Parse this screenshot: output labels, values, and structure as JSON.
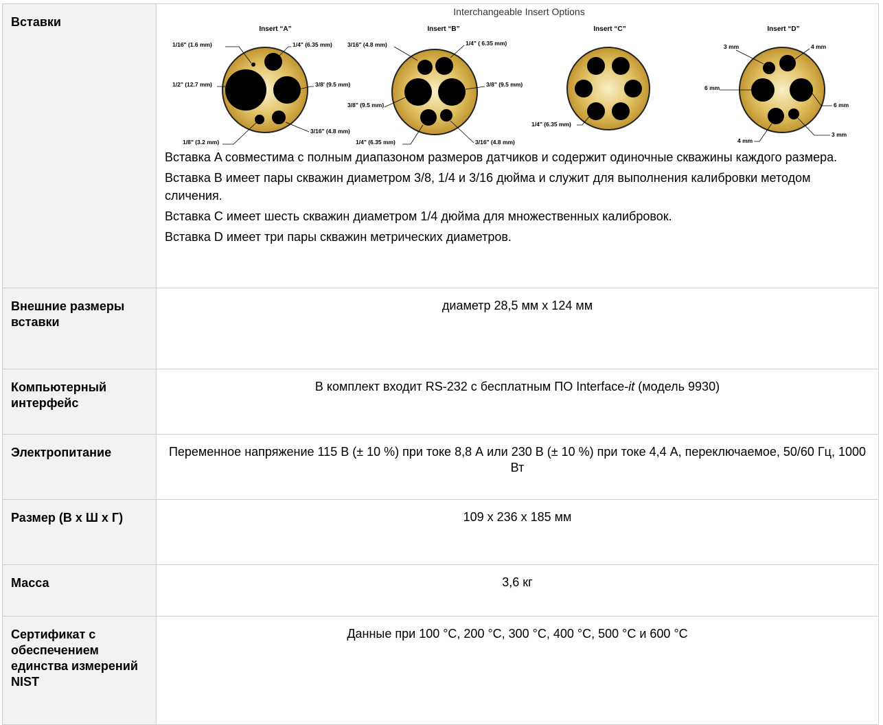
{
  "figure": {
    "title": "Interchangeable Insert Options",
    "inserts": [
      {
        "name": "Insert “A”",
        "labels": [
          "1/16\" (1.6 mm)",
          "1/4\" (6.35 mm)",
          "1/2\" (12.7 mm)",
          "3/8' (9.5 mm)",
          "1/8\" (3.2 mm)",
          "3/16\" (4.8 mm)"
        ]
      },
      {
        "name": "Insert “B”",
        "labels": [
          "3/16\" (4.8 mm)",
          "1/4\" ( 6.35 mm)",
          "3/8\" (9.5 mm)",
          "3/8\" (9.5 mm)",
          "1/4\" (6.35 mm)",
          "3/16\" (4.8 mm)"
        ]
      },
      {
        "name": "Insert “C”",
        "labels": [
          "1/4\" (6.35 mm)"
        ]
      },
      {
        "name": "Insert “D”",
        "labels": [
          "3 mm",
          "4 mm",
          "6 mm",
          "6 mm",
          "4 mm",
          "3 mm"
        ]
      }
    ]
  },
  "rows": {
    "inserts": {
      "label": "Вставки",
      "desc": [
        "Вставка A совместима с полным диапазоном размеров датчиков и содержит одиночные скважины каждого размера.",
        "Вставка B имеет пары скважин диаметром 3/8, 1/4 и 3/16 дюйма и служит для выполнения калибровки методом сличения.",
        "Вставка C имеет шесть скважин диаметром 1/4 дюйма для множественных калибровок.",
        "Вставка D имеет три пары скважин метрических диаметров."
      ]
    },
    "dims": {
      "label": "Внешние размеры вставки",
      "value": "диаметр 28,5 мм x 124 мм"
    },
    "pc": {
      "label": "Компьютерный интерфейс",
      "value_pre": "В комплект входит RS-232 с бесплатным ПО Interface-",
      "value_it": "it",
      "value_post": " (модель 9930)"
    },
    "power": {
      "label": "Электропитание",
      "value": "Переменное напряжение 115 В (± 10 %) при токе 8,8 А или 230 В (± 10 %) при токе 4,4 А, переключаемое, 50/60 Гц, 1000 Вт"
    },
    "size": {
      "label": "Размер (В x Ш x Г)",
      "value": "109 x 236 x 185 мм"
    },
    "mass": {
      "label": "Масса",
      "value": "3,6 кг"
    },
    "cert": {
      "label": "Сертификат с обеспечением единства измерений NIST",
      "value": "Данные при 100 °C, 200 °C, 300 °C, 400 °C, 500 °C и 600 °C"
    }
  },
  "colors": {
    "border": "#cfcfcf",
    "label_bg": "#f2f2f2",
    "brass_light": "#f6e9b8",
    "brass_dark": "#b98a22"
  }
}
